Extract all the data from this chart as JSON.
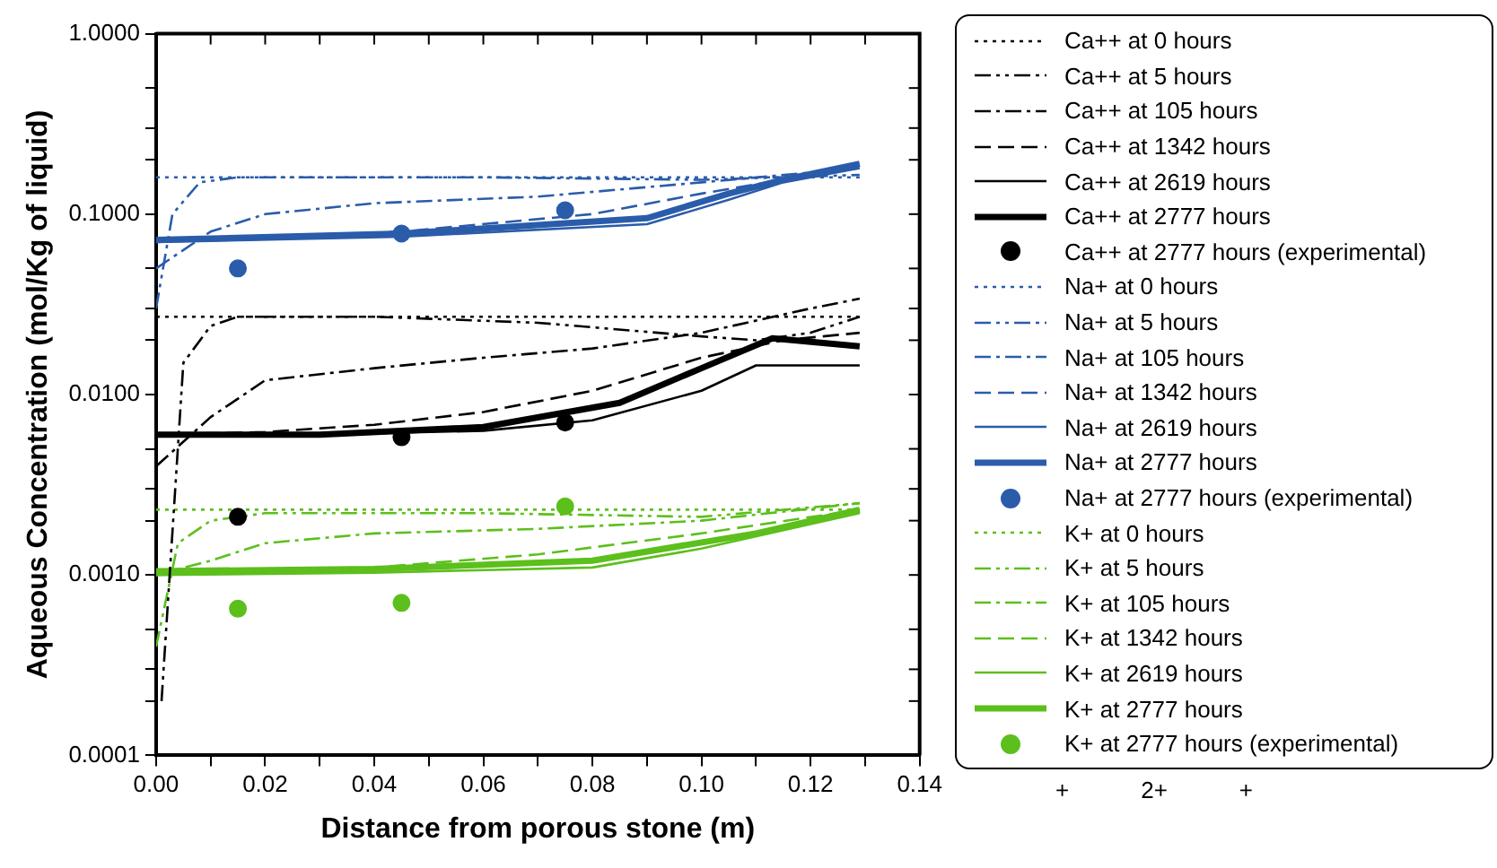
{
  "chart_data": {
    "type": "line",
    "xlabel": "Distance from porous stone (m)",
    "ylabel": "Aqueous Concentration (mol/Kg of liquid)",
    "log": "y",
    "grid": false,
    "legend": "right",
    "marker": "none",
    "xlim": [
      0,
      0.14
    ],
    "xticks": [
      {
        "value": 0,
        "label": "0.00"
      },
      {
        "value": 0.01,
        "label": null
      },
      0.02,
      {
        "value": 0.03,
        "label": null
      },
      0.04,
      {
        "value": 0.05,
        "label": null
      },
      0.06,
      {
        "value": 0.07,
        "label": null
      },
      0.08,
      {
        "value": 0.09,
        "label": null
      },
      {
        "value": 0.1,
        "label": "0.10"
      },
      {
        "value": 0.11,
        "label": null
      },
      0.12,
      {
        "value": 0.13,
        "label": null
      },
      0.14
    ],
    "ylim": [
      0.0001,
      1
    ],
    "yticks": [
      0.0001,
      {
        "value": 0.0002,
        "label": null
      },
      {
        "value": 0.0003,
        "label": null
      },
      {
        "value": 0.0005,
        "label": null
      },
      {
        "value": 0.001,
        "label": "0.0010"
      },
      {
        "value": 0.002,
        "label": null
      },
      {
        "value": 0.003,
        "label": null
      },
      {
        "value": 0.005,
        "label": null
      },
      {
        "value": 0.01,
        "label": "0.0100"
      },
      {
        "value": 0.02,
        "label": null
      },
      {
        "value": 0.03,
        "label": null
      },
      {
        "value": 0.05,
        "label": null
      },
      {
        "value": 0.1,
        "label": "0.1000"
      },
      {
        "value": 0.2,
        "label": null
      },
      {
        "value": 0.3,
        "label": null
      },
      {
        "value": 0.5,
        "label": null
      },
      {
        "value": 1,
        "label": "1.0000"
      }
    ],
    "series": [
      {
        "name": "Ca++ at 0 hours",
        "color": "#000000",
        "line_style": "dotted",
        "x": [
          0,
          0.129
        ],
        "values": [
          0.027,
          0.027
        ]
      },
      {
        "name": "Ca++ at 5 hours",
        "color": "#000000",
        "line_style": "dashdotdot",
        "x": [
          0.001,
          0.005,
          0.01,
          0.015,
          0.04,
          0.07,
          0.1,
          0.11,
          0.12,
          0.129
        ],
        "values": [
          0.0002,
          0.015,
          0.024,
          0.027,
          0.027,
          0.025,
          0.021,
          0.02,
          0.022,
          0.027
        ]
      },
      {
        "name": "Ca++ at 105 hours",
        "color": "#000000",
        "line_style": "dashdot",
        "x": [
          0,
          0.01,
          0.02,
          0.04,
          0.06,
          0.08,
          0.1,
          0.12,
          0.129
        ],
        "values": [
          0.004,
          0.0075,
          0.012,
          0.014,
          0.016,
          0.018,
          0.022,
          0.03,
          0.034
        ]
      },
      {
        "name": "Ca++ at 1342 hours",
        "color": "#000000",
        "line_style": "dashed",
        "x": [
          0,
          0.02,
          0.04,
          0.06,
          0.08,
          0.1,
          0.115,
          0.129
        ],
        "values": [
          0.006,
          0.0062,
          0.0068,
          0.008,
          0.0105,
          0.016,
          0.02,
          0.022
        ]
      },
      {
        "name": "Ca++ at 2619 hours",
        "color": "#000000",
        "line_style": "solid",
        "x": [
          0,
          0.03,
          0.06,
          0.08,
          0.1,
          0.11,
          0.129
        ],
        "values": [
          0.006,
          0.006,
          0.0063,
          0.0072,
          0.0105,
          0.0145,
          0.0145
        ]
      },
      {
        "name": "Ca++ at 2777 hours",
        "color": "#000000",
        "line_style": "solid",
        "x": [
          0,
          0.03,
          0.06,
          0.085,
          0.1,
          0.113,
          0.129
        ],
        "values": [
          0.006,
          0.006,
          0.0066,
          0.009,
          0.014,
          0.0205,
          0.0185
        ]
      },
      {
        "name": "Ca++ at 2777 hours (experimental)",
        "type": "scatter",
        "marker": "circle",
        "color": "#000000",
        "x": [
          0.015,
          0.045,
          0.075
        ],
        "values": [
          0.0021,
          0.0058,
          0.007
        ]
      },
      {
        "name": "Na+ at 0 hours",
        "color": "#2a5caa",
        "line_style": "dotted",
        "x": [
          0,
          0.129
        ],
        "values": [
          0.16,
          0.16
        ]
      },
      {
        "name": "Na+ at 5 hours",
        "color": "#2a5caa",
        "line_style": "dashdotdot",
        "x": [
          0,
          0.003,
          0.008,
          0.015,
          0.06,
          0.1,
          0.129
        ],
        "values": [
          0.03,
          0.1,
          0.15,
          0.16,
          0.16,
          0.155,
          0.165
        ]
      },
      {
        "name": "Na+ at 105 hours",
        "color": "#2a5caa",
        "line_style": "dashdot",
        "x": [
          0,
          0.01,
          0.02,
          0.04,
          0.07,
          0.1,
          0.129
        ],
        "values": [
          0.05,
          0.08,
          0.1,
          0.115,
          0.125,
          0.15,
          0.18
        ]
      },
      {
        "name": "Na+ at 1342 hours",
        "color": "#2a5caa",
        "line_style": "dashed",
        "x": [
          0,
          0.045,
          0.08,
          0.1,
          0.115,
          0.129
        ],
        "values": [
          0.07,
          0.08,
          0.1,
          0.13,
          0.155,
          0.185
        ]
      },
      {
        "name": "Na+ at 2619 hours",
        "color": "#2a5caa",
        "line_style": "solid",
        "x": [
          0,
          0.045,
          0.09,
          0.105,
          0.115,
          0.129
        ],
        "values": [
          0.07,
          0.075,
          0.088,
          0.12,
          0.15,
          0.18
        ]
      },
      {
        "name": "Na+ at 2777 hours",
        "color": "#2a5caa",
        "line_style": "solid",
        "x": [
          0,
          0.045,
          0.09,
          0.105,
          0.115,
          0.129
        ],
        "values": [
          0.072,
          0.078,
          0.095,
          0.13,
          0.155,
          0.19
        ]
      },
      {
        "name": "Na+ at 2777 hours (experimental)",
        "type": "scatter",
        "marker": "circle",
        "color": "#2a5caa",
        "x": [
          0.015,
          0.045,
          0.075
        ],
        "values": [
          0.05,
          0.078,
          0.105
        ]
      },
      {
        "name": "K+ at 0 hours",
        "color": "#5cbf1c",
        "line_style": "dotted",
        "x": [
          0,
          0.129
        ],
        "values": [
          0.0023,
          0.0023
        ]
      },
      {
        "name": "K+ at 5 hours",
        "color": "#5cbf1c",
        "line_style": "dashdotdot",
        "x": [
          0,
          0.004,
          0.01,
          0.02,
          0.06,
          0.1,
          0.129
        ],
        "values": [
          0.0004,
          0.0015,
          0.002,
          0.0022,
          0.0022,
          0.0021,
          0.0025
        ]
      },
      {
        "name": "K+ at 105 hours",
        "color": "#5cbf1c",
        "line_style": "dashdot",
        "x": [
          0,
          0.01,
          0.02,
          0.04,
          0.07,
          0.1,
          0.129
        ],
        "values": [
          0.001,
          0.0012,
          0.0015,
          0.0017,
          0.0018,
          0.002,
          0.0025
        ]
      },
      {
        "name": "K+ at 1342 hours",
        "color": "#5cbf1c",
        "line_style": "dashed",
        "x": [
          0,
          0.04,
          0.07,
          0.1,
          0.129
        ],
        "values": [
          0.001,
          0.0011,
          0.0013,
          0.0017,
          0.0023
        ]
      },
      {
        "name": "K+ at 2619 hours",
        "color": "#5cbf1c",
        "line_style": "solid",
        "x": [
          0,
          0.04,
          0.08,
          0.1,
          0.129
        ],
        "values": [
          0.001,
          0.00103,
          0.0011,
          0.0014,
          0.0022
        ]
      },
      {
        "name": "K+ at 2777 hours",
        "color": "#5cbf1c",
        "line_style": "solid",
        "x": [
          0,
          0.04,
          0.08,
          0.11,
          0.129
        ],
        "values": [
          0.00105,
          0.00108,
          0.0012,
          0.0017,
          0.0023
        ]
      },
      {
        "name": "K+ at 2777 hours (experimental)",
        "type": "scatter",
        "marker": "circle",
        "color": "#5cbf1c",
        "x": [
          0.015,
          0.045,
          0.075
        ],
        "values": [
          0.00065,
          0.0007,
          0.0024
        ]
      }
    ],
    "annotations": [
      "+",
      "2+",
      "+"
    ]
  }
}
